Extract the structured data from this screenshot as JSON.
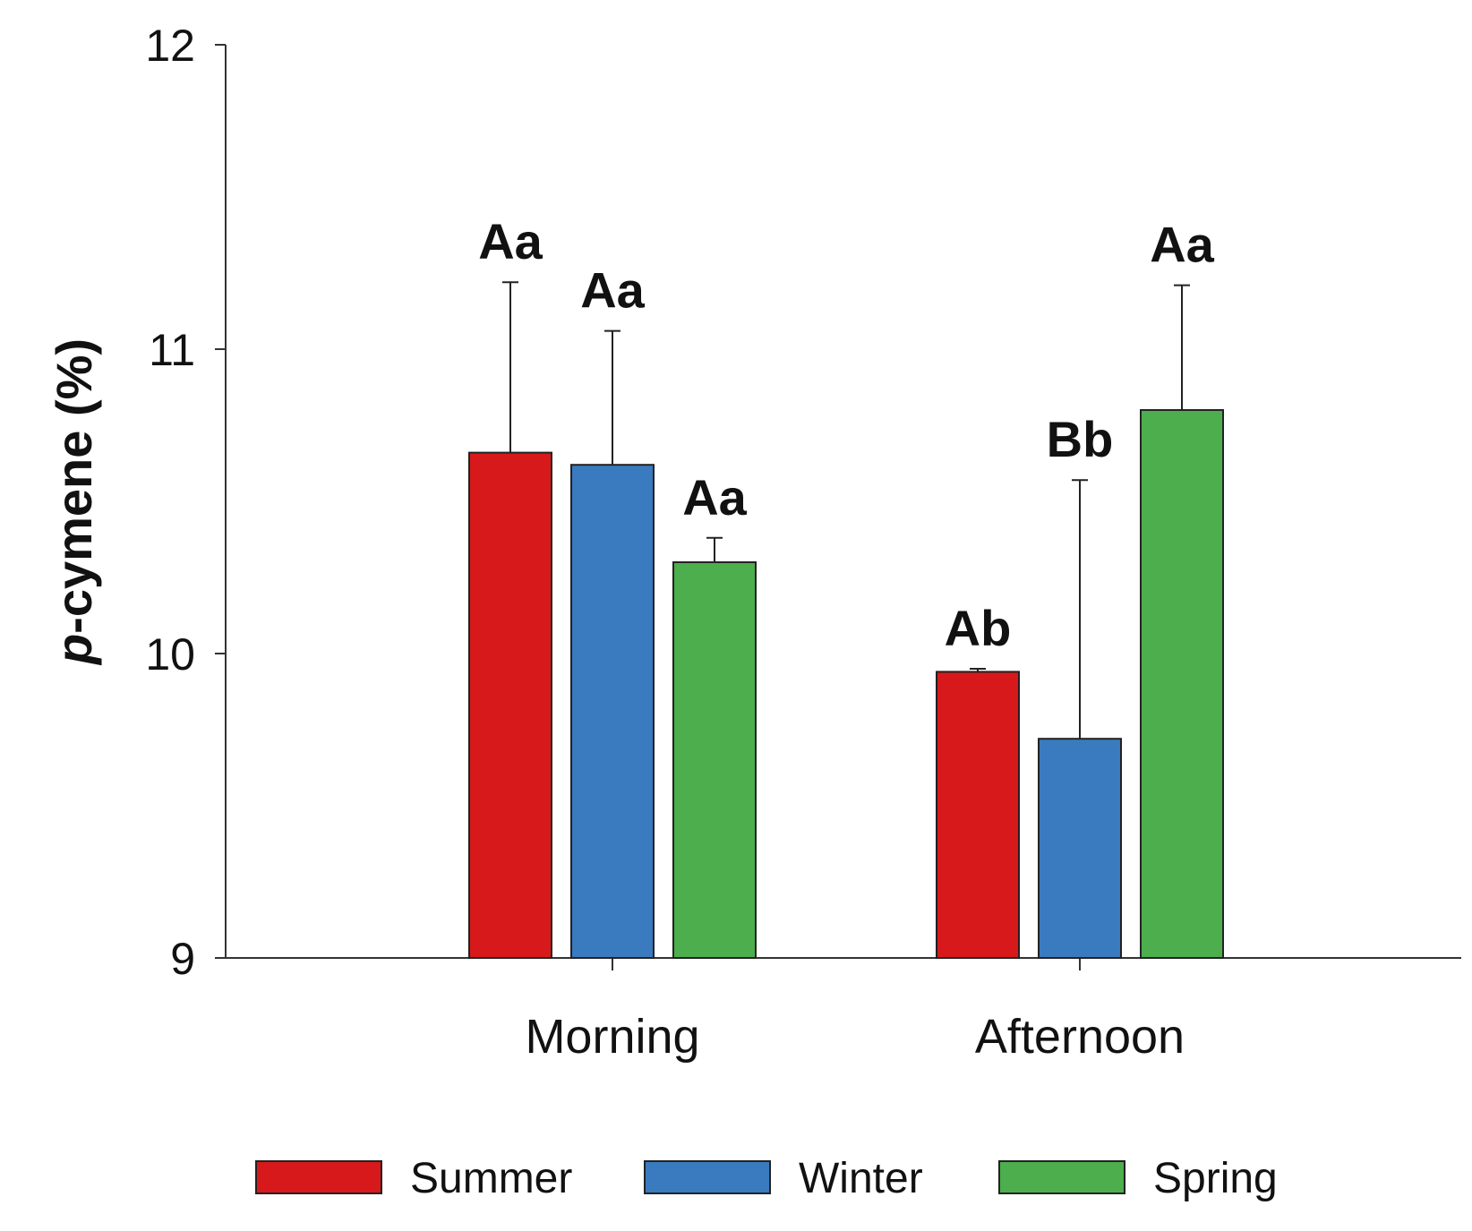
{
  "chart_data": {
    "type": "bar",
    "title": "",
    "xlabel": "",
    "ylabel": {
      "italic": "p",
      "rest": "-cymene (%)"
    },
    "ylim": [
      9,
      12
    ],
    "yticks": [
      "9",
      "10",
      "11",
      "12"
    ],
    "categories": [
      "Morning",
      "Afternoon"
    ],
    "series": [
      {
        "name": "Summer",
        "color": "#d7191c",
        "values": [
          10.66,
          9.94
        ],
        "errors": [
          0.56,
          0.01
        ],
        "labels": [
          "Aa",
          "Ab"
        ]
      },
      {
        "name": "Winter",
        "color": "#3a7abf",
        "values": [
          10.62,
          9.72
        ],
        "errors": [
          0.44,
          0.85
        ],
        "labels": [
          "Aa",
          "Bb"
        ]
      },
      {
        "name": "Spring",
        "color": "#4cae4c",
        "values": [
          10.3,
          10.8
        ],
        "errors": [
          0.08,
          0.41
        ],
        "labels": [
          "Aa",
          "Aa"
        ]
      }
    ],
    "legend": {
      "placement": "bottom"
    }
  }
}
